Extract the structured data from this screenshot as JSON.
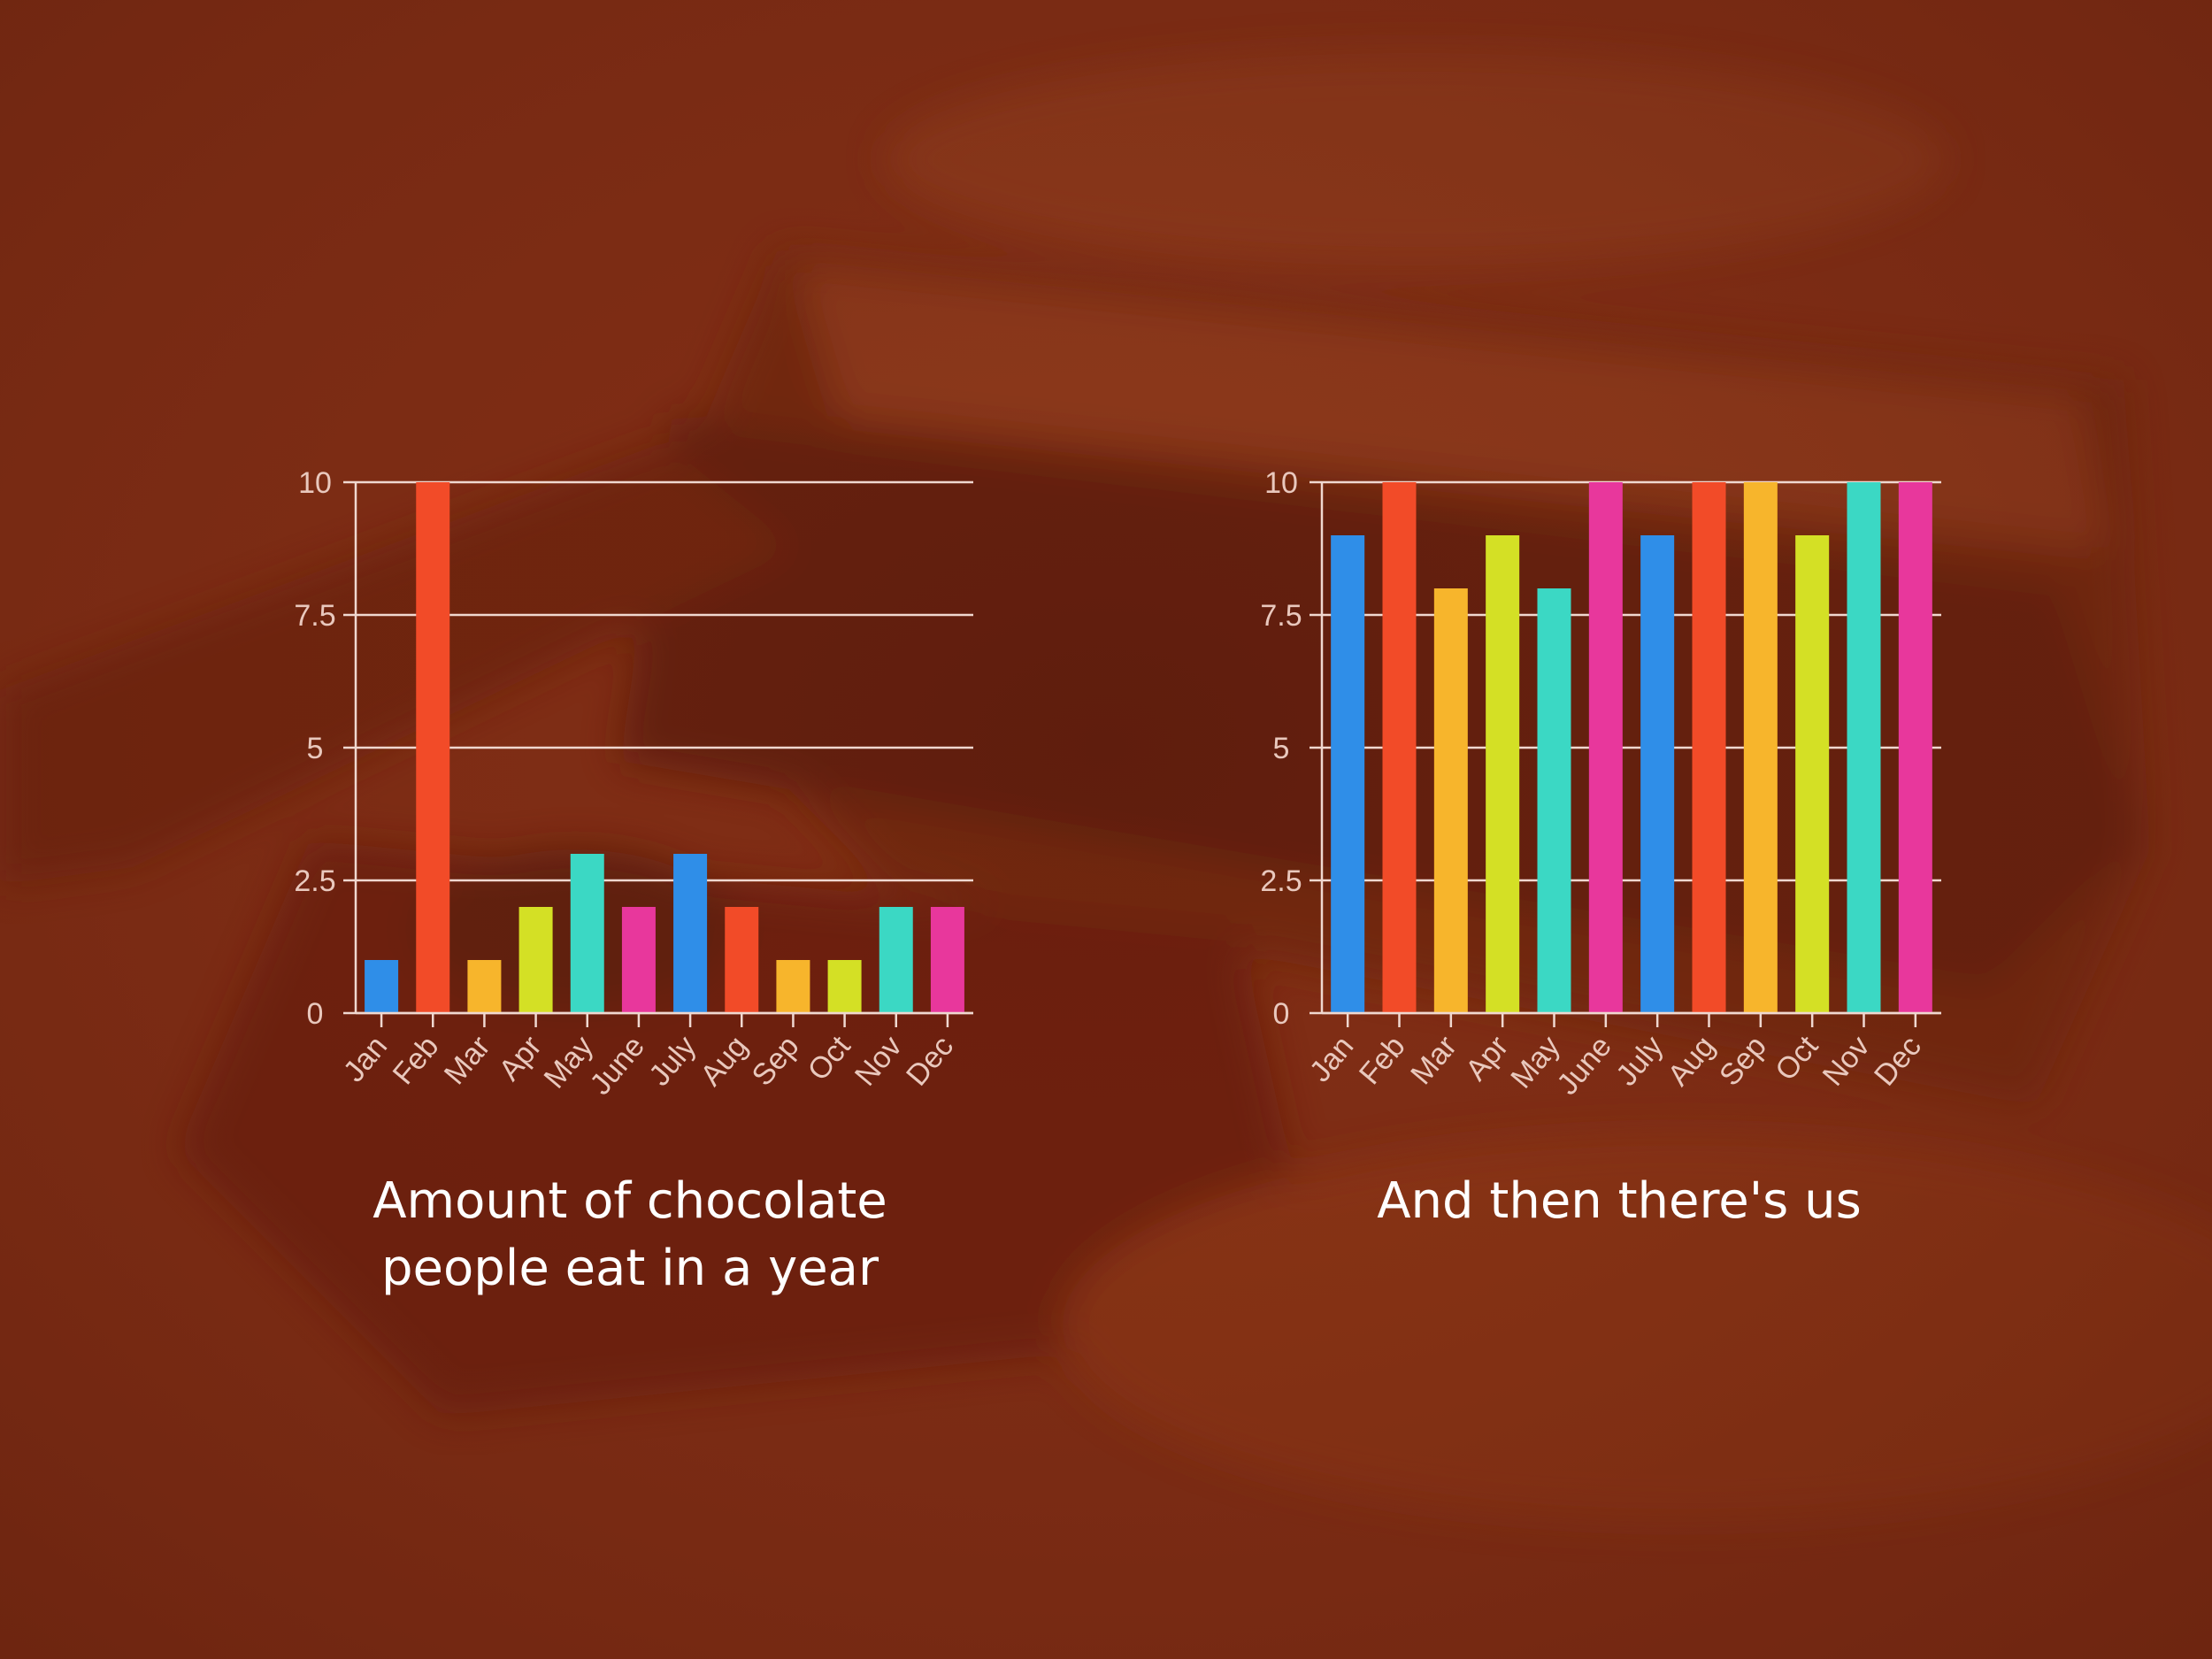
{
  "chart_data": [
    {
      "type": "bar",
      "categories": [
        "Jan",
        "Feb",
        "Mar",
        "Apr",
        "May",
        "June",
        "July",
        "Aug",
        "Sep",
        "Oct",
        "Nov",
        "Dec"
      ],
      "values": [
        1,
        10,
        1,
        2,
        3,
        2,
        3,
        2,
        1,
        1,
        2,
        2
      ],
      "ylim": [
        0,
        10
      ],
      "yticks": [
        "0",
        "2.5",
        "5",
        "7.5",
        "10"
      ],
      "grid": true,
      "caption": [
        "Amount of chocolate",
        "people eat in a year"
      ]
    },
    {
      "type": "bar",
      "categories": [
        "Jan",
        "Feb",
        "Mar",
        "Apr",
        "May",
        "June",
        "July",
        "Aug",
        "Sep",
        "Oct",
        "Nov",
        "Dec"
      ],
      "values": [
        9,
        10,
        8,
        9,
        8,
        10,
        9,
        10,
        10,
        9,
        10,
        10
      ],
      "ylim": [
        0,
        10
      ],
      "yticks": [
        "0",
        "2.5",
        "5",
        "7.5",
        "10"
      ],
      "grid": true,
      "caption": [
        "And then there's us"
      ]
    }
  ],
  "colors": {
    "background": "#7e2c14",
    "axis": "#f0d8d0",
    "bar_palette": [
      "#2f8ee8",
      "#f24b28",
      "#f7b52c",
      "#d4e025",
      "#3bd8c4",
      "#e8379c"
    ]
  }
}
